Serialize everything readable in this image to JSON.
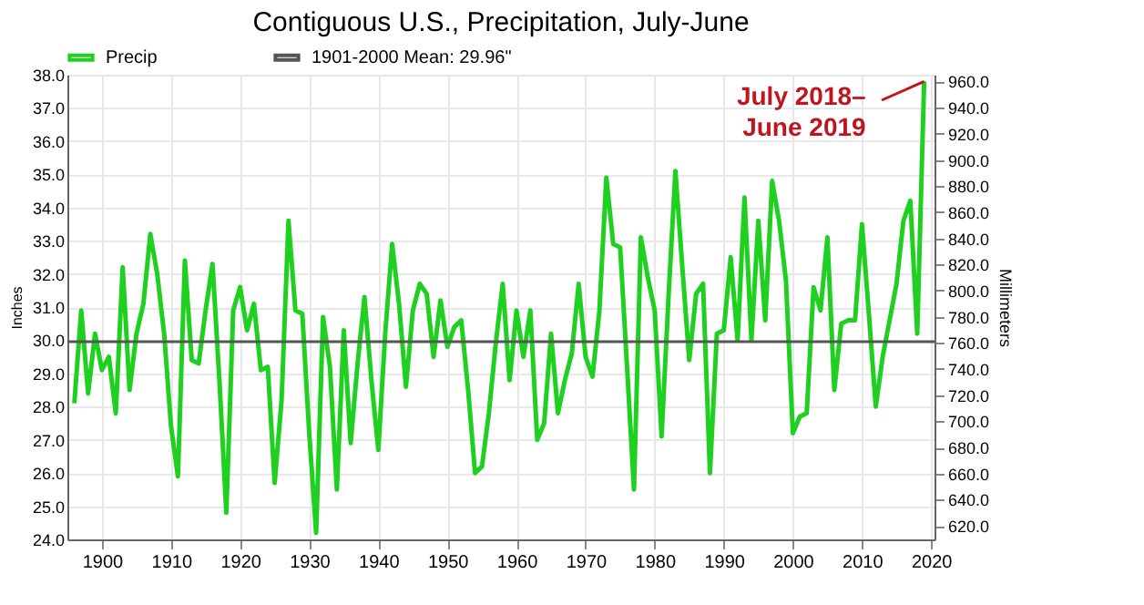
{
  "chart_data": {
    "type": "line",
    "title": "Contiguous U.S., Precipitation, July-June",
    "x": [
      1896,
      1897,
      1898,
      1899,
      1900,
      1901,
      1902,
      1903,
      1904,
      1905,
      1906,
      1907,
      1908,
      1909,
      1910,
      1911,
      1912,
      1913,
      1914,
      1915,
      1916,
      1917,
      1918,
      1919,
      1920,
      1921,
      1922,
      1923,
      1924,
      1925,
      1926,
      1927,
      1928,
      1929,
      1930,
      1931,
      1932,
      1933,
      1934,
      1935,
      1936,
      1937,
      1938,
      1939,
      1940,
      1941,
      1942,
      1943,
      1944,
      1945,
      1946,
      1947,
      1948,
      1949,
      1950,
      1951,
      1952,
      1953,
      1954,
      1955,
      1956,
      1957,
      1958,
      1959,
      1960,
      1961,
      1962,
      1963,
      1964,
      1965,
      1966,
      1967,
      1968,
      1969,
      1970,
      1971,
      1972,
      1973,
      1974,
      1975,
      1976,
      1977,
      1978,
      1979,
      1980,
      1981,
      1982,
      1983,
      1984,
      1985,
      1986,
      1987,
      1988,
      1989,
      1990,
      1991,
      1992,
      1993,
      1994,
      1995,
      1996,
      1997,
      1998,
      1999,
      2000,
      2001,
      2002,
      2003,
      2004,
      2005,
      2006,
      2007,
      2008,
      2009,
      2010,
      2011,
      2012,
      2013,
      2014,
      2015,
      2016,
      2017,
      2018,
      2019
    ],
    "series": [
      {
        "name": "Precip",
        "color": "#20d020",
        "values": [
          28.1,
          30.9,
          28.4,
          30.2,
          29.1,
          29.5,
          27.8,
          32.2,
          28.5,
          30.2,
          31.1,
          33.2,
          32.0,
          30.2,
          27.4,
          25.9,
          32.4,
          29.4,
          29.3,
          30.9,
          32.3,
          28.8,
          24.8,
          30.9,
          31.6,
          30.3,
          31.1,
          29.1,
          29.2,
          25.7,
          28.2,
          33.6,
          30.9,
          30.8,
          27.2,
          24.2,
          30.7,
          29.2,
          25.5,
          30.3,
          26.9,
          29.3,
          31.3,
          28.8,
          26.7,
          30.2,
          32.9,
          31.1,
          28.6,
          30.9,
          31.7,
          31.4,
          29.5,
          31.2,
          29.8,
          30.4,
          30.6,
          28.5,
          26.0,
          26.2,
          27.8,
          29.9,
          31.7,
          28.8,
          30.9,
          29.5,
          30.9,
          27.0,
          27.5,
          30.2,
          27.8,
          28.8,
          29.6,
          31.7,
          29.5,
          28.9,
          30.9,
          34.9,
          32.9,
          32.8,
          29.2,
          25.5,
          33.1,
          31.9,
          30.9,
          27.1,
          31.3,
          35.1,
          32.2,
          29.4,
          31.4,
          31.7,
          26.0,
          30.2,
          30.3,
          32.5,
          30.0,
          34.3,
          30.0,
          33.6,
          30.6,
          34.8,
          33.6,
          31.8,
          27.2,
          27.7,
          27.8,
          31.6,
          30.9,
          33.1,
          28.5,
          30.5,
          30.6,
          30.6,
          33.5,
          30.8,
          28.0,
          29.5,
          30.6,
          31.7,
          33.6,
          34.2,
          30.2,
          37.8
        ]
      }
    ],
    "ref_lines": [
      {
        "axis": "y",
        "value": 29.96,
        "label": "1901-2000 Mean: 29.96\"",
        "color": "#555555"
      }
    ],
    "annotations": [
      {
        "text": "July 2018–\nJune 2019",
        "x": 2019,
        "y": 37.8
      }
    ],
    "ylabel": "Inches",
    "y2label": "Millimeters",
    "xlim": [
      1895,
      2020.5
    ],
    "xticks": [
      1900,
      1910,
      1920,
      1930,
      1940,
      1950,
      1960,
      1970,
      1980,
      1990,
      2000,
      2010,
      2020
    ],
    "ylim": [
      24,
      38
    ],
    "yticks": [
      {
        "value": 24,
        "label": "24.0"
      },
      {
        "value": 25,
        "label": "25.0"
      },
      {
        "value": 26,
        "label": "26.0"
      },
      {
        "value": 27,
        "label": "27.0"
      },
      {
        "value": 28,
        "label": "28.0"
      },
      {
        "value": 29,
        "label": "29.0"
      },
      {
        "value": 30,
        "label": "30.0"
      },
      {
        "value": 31,
        "label": "31.0"
      },
      {
        "value": 32,
        "label": "32.0"
      },
      {
        "value": 33,
        "label": "33.0"
      },
      {
        "value": 34,
        "label": "34.0"
      },
      {
        "value": 35,
        "label": "35.0"
      },
      {
        "value": 36,
        "label": "36.0"
      },
      {
        "value": 37,
        "label": "37.0"
      },
      {
        "value": 38,
        "label": "38.0"
      }
    ],
    "y2lim": [
      609.6,
      965.2
    ],
    "y2ticks": [
      {
        "value": 620,
        "label": "620.0"
      },
      {
        "value": 640,
        "label": "640.0"
      },
      {
        "value": 660,
        "label": "660.0"
      },
      {
        "value": 680,
        "label": "680.0"
      },
      {
        "value": 700,
        "label": "700.0"
      },
      {
        "value": 720,
        "label": "720.0"
      },
      {
        "value": 740,
        "label": "740.0"
      },
      {
        "value": 760,
        "label": "760.0"
      },
      {
        "value": 780,
        "label": "780.0"
      },
      {
        "value": 800,
        "label": "800.0"
      },
      {
        "value": 820,
        "label": "820.0"
      },
      {
        "value": 840,
        "label": "840.0"
      },
      {
        "value": 860,
        "label": "860.0"
      },
      {
        "value": 880,
        "label": "880.0"
      },
      {
        "value": 900,
        "label": "900.0"
      },
      {
        "value": 920,
        "label": "920.0"
      },
      {
        "value": 940,
        "label": "940.0"
      },
      {
        "value": 960,
        "label": "960.0"
      }
    ],
    "grid": true,
    "legend": "top",
    "marker": "none",
    "line_style": "solid"
  }
}
